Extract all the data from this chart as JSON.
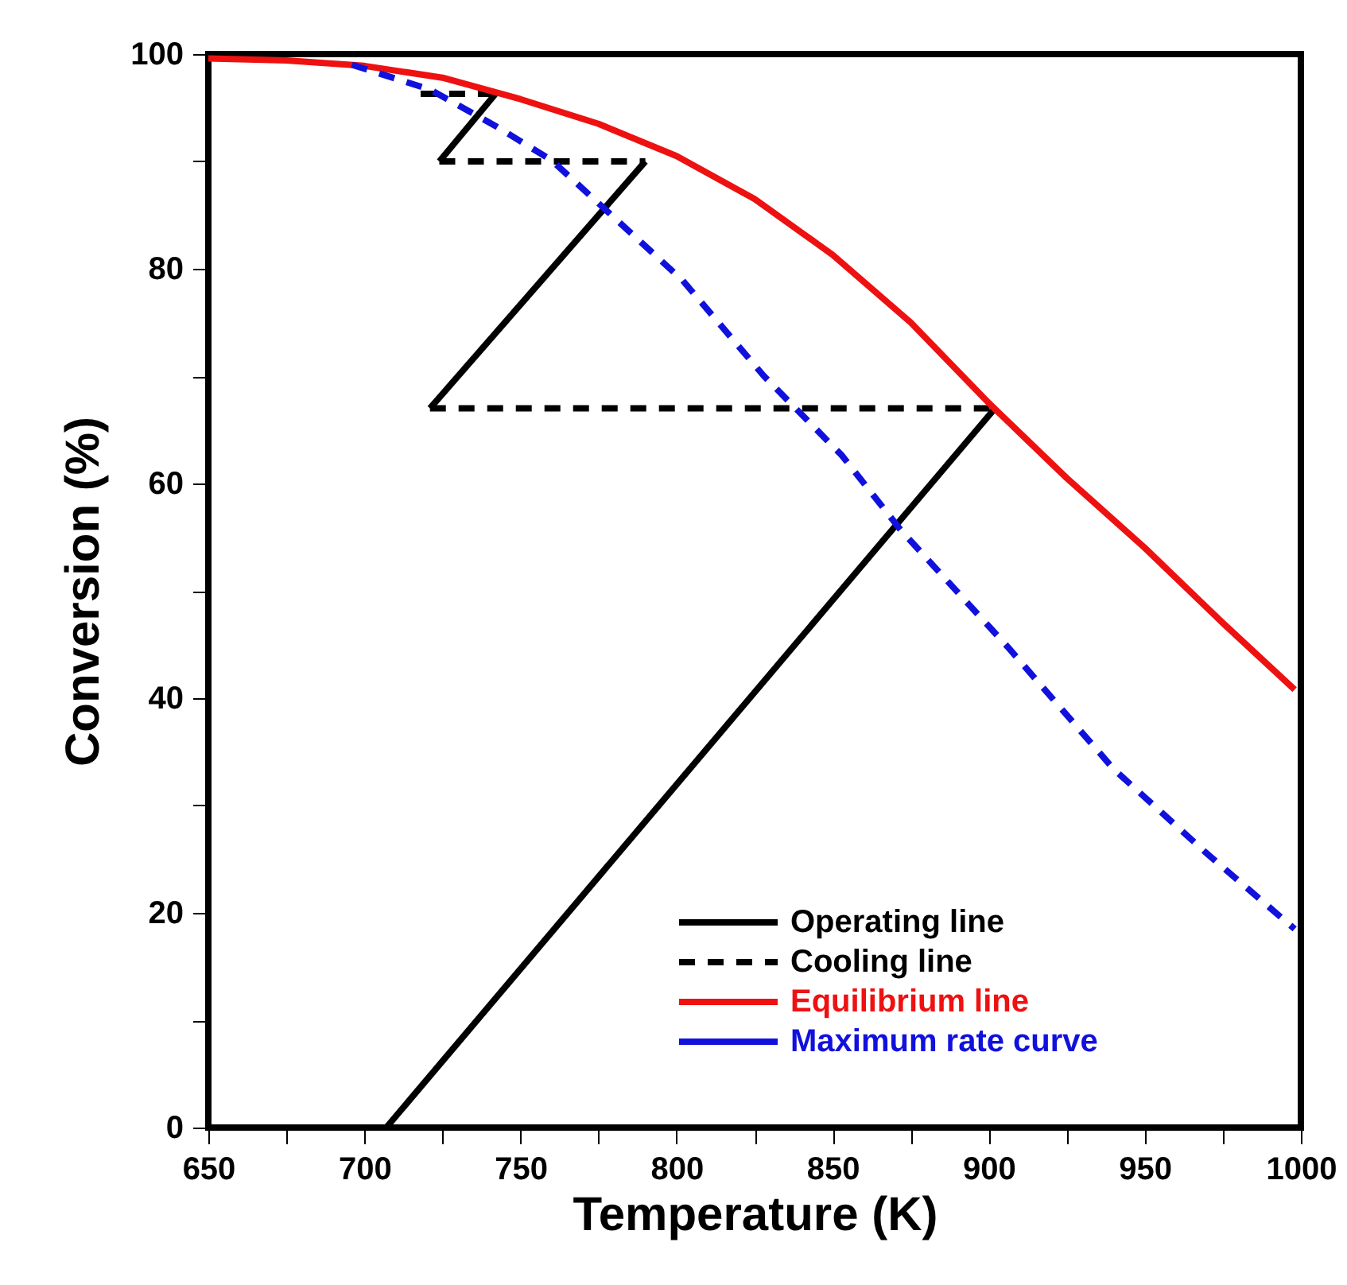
{
  "chart_data": {
    "type": "line",
    "xlabel": "Temperature (K)",
    "ylabel": "Conversion (%)",
    "xlim": [
      650,
      1000
    ],
    "ylim": [
      0,
      100
    ],
    "xticks": [
      650,
      {
        "value": 675,
        "label": null
      },
      700,
      {
        "value": 725,
        "label": null
      },
      750,
      {
        "value": 775,
        "label": null
      },
      800,
      {
        "value": 825,
        "label": null
      },
      850,
      {
        "value": 875,
        "label": null
      },
      900,
      {
        "value": 925,
        "label": null
      },
      950,
      {
        "value": 975,
        "label": null
      },
      1000
    ],
    "yticks": [
      0,
      {
        "value": 10,
        "label": null
      },
      20,
      {
        "value": 30,
        "label": null
      },
      40,
      {
        "value": 50,
        "label": null
      },
      60,
      {
        "value": 70,
        "label": null
      },
      80,
      {
        "value": 90,
        "label": null
      },
      100
    ],
    "grid": false,
    "legend": "bottom right",
    "marker": "none",
    "series": [
      {
        "name": "Operating line",
        "color": "#000000",
        "line_style": "solid",
        "x": [
          707,
          902
        ],
        "values": [
          0,
          67
        ]
      },
      {
        "color": "#000000",
        "line_style": "solid",
        "x": [
          721,
          790
        ],
        "values": [
          67,
          90
        ]
      },
      {
        "color": "#000000",
        "line_style": "solid",
        "x": [
          724,
          742
        ],
        "values": [
          90,
          96.3
        ]
      },
      {
        "name": "Cooling line",
        "color": "#000000",
        "line_style": "dashed",
        "x": [
          721,
          902
        ],
        "values": [
          67,
          67
        ]
      },
      {
        "color": "#000000",
        "line_style": "dashed",
        "x": [
          724,
          790
        ],
        "values": [
          90,
          90
        ]
      },
      {
        "color": "#000000",
        "line_style": "dashed",
        "x": [
          718,
          742
        ],
        "values": [
          96.3,
          96.3
        ]
      },
      {
        "name": "Equilibrium line",
        "color": "#ee1111",
        "line_style": "solid",
        "x": [
          650,
          675,
          700,
          725,
          750,
          775,
          800,
          825,
          850,
          875,
          900,
          925,
          950,
          975,
          998
        ],
        "values": [
          99.6,
          99.4,
          98.9,
          97.8,
          95.8,
          93.5,
          90.5,
          86.5,
          81.3,
          75,
          67.5,
          60.5,
          54,
          47,
          40.8
        ]
      },
      {
        "name": "Maximum rate curve",
        "color": "#1111dd",
        "line_style": "dashed",
        "x": [
          696,
          721,
          742,
          760,
          778,
          802,
          828,
          853,
          872,
          906,
          940,
          970,
          998
        ],
        "values": [
          99,
          96.7,
          93.3,
          90.1,
          85.3,
          78.9,
          70,
          62.6,
          55.6,
          44.8,
          33.4,
          25.5,
          18.5
        ]
      }
    ]
  }
}
